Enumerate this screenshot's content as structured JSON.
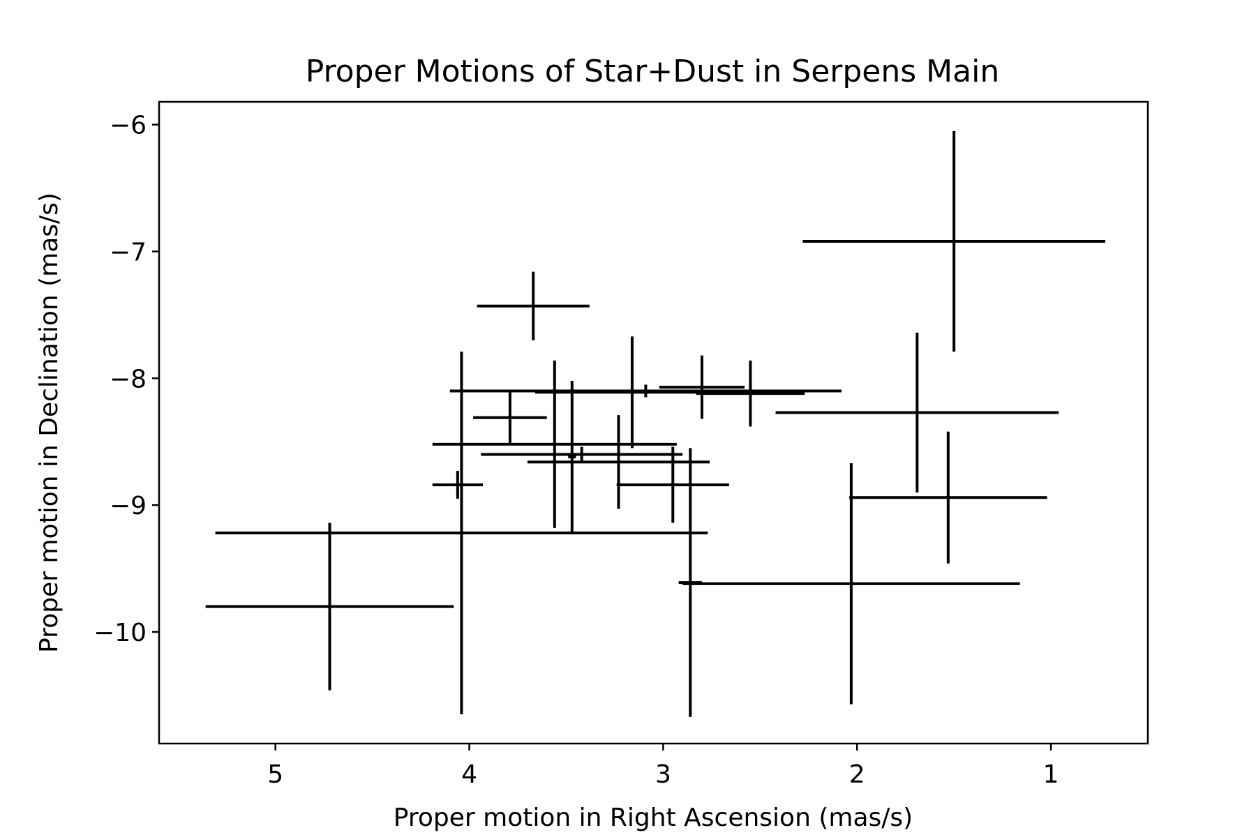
{
  "chart_data": {
    "type": "scatter",
    "title": "Proper Motions of Star+Dust in Serpens Main",
    "xlabel": "Proper motion in Right Ascension (mas/s)",
    "ylabel": "Proper motion in Declination (mas/s)",
    "x_axis_inverted": true,
    "xlim": [
      5.6,
      0.5
    ],
    "ylim": [
      -10.88,
      -5.82
    ],
    "xticks": [
      5,
      4,
      3,
      2,
      1
    ],
    "yticks": [
      -6,
      -7,
      -8,
      -9,
      -10
    ],
    "xtick_labels": [
      "5",
      "4",
      "3",
      "2",
      "1"
    ],
    "ytick_labels": [
      "−6",
      "−7",
      "−8",
      "−9",
      "−10"
    ],
    "grid": false,
    "legend": "none",
    "marker": "none",
    "color": "#000000",
    "points": [
      {
        "x": 1.5,
        "y": -6.92,
        "xerr": 0.78,
        "yerr": 0.87
      },
      {
        "x": 3.67,
        "y": -7.43,
        "xerr": 0.29,
        "yerr": 0.27
      },
      {
        "x": 2.86,
        "y": -9.61,
        "xerr": 0.06,
        "yerr": 1.06
      },
      {
        "x": 3.16,
        "y": -8.11,
        "xerr": 0.5,
        "yerr": 0.44
      },
      {
        "x": 2.8,
        "y": -8.07,
        "xerr": 0.22,
        "yerr": 0.25
      },
      {
        "x": 2.55,
        "y": -8.12,
        "xerr": 0.28,
        "yerr": 0.26
      },
      {
        "x": 3.09,
        "y": -8.1,
        "xerr": 1.01,
        "yerr": 0.05
      },
      {
        "x": 1.69,
        "y": -8.27,
        "xerr": 0.73,
        "yerr": 0.63
      },
      {
        "x": 3.79,
        "y": -8.31,
        "xerr": 0.19,
        "yerr": 0.21
      },
      {
        "x": 3.56,
        "y": -8.52,
        "xerr": 0.63,
        "yerr": 0.66
      },
      {
        "x": 3.42,
        "y": -8.6,
        "xerr": 0.52,
        "yerr": 0.06
      },
      {
        "x": 3.47,
        "y": -8.62,
        "xerr": 0.02,
        "yerr": 0.6
      },
      {
        "x": 3.23,
        "y": -8.66,
        "xerr": 0.47,
        "yerr": 0.37
      },
      {
        "x": 2.95,
        "y": -8.84,
        "xerr": 0.29,
        "yerr": 0.3
      },
      {
        "x": 4.06,
        "y": -8.84,
        "xerr": 0.13,
        "yerr": 0.11
      },
      {
        "x": 1.53,
        "y": -8.94,
        "xerr": 0.51,
        "yerr": 0.52
      },
      {
        "x": 4.04,
        "y": -9.22,
        "xerr": 1.27,
        "yerr": 1.43
      },
      {
        "x": 4.72,
        "y": -9.8,
        "xerr": 0.64,
        "yerr": 0.66
      },
      {
        "x": 2.03,
        "y": -9.62,
        "xerr": 0.87,
        "yerr": 0.95
      }
    ]
  }
}
